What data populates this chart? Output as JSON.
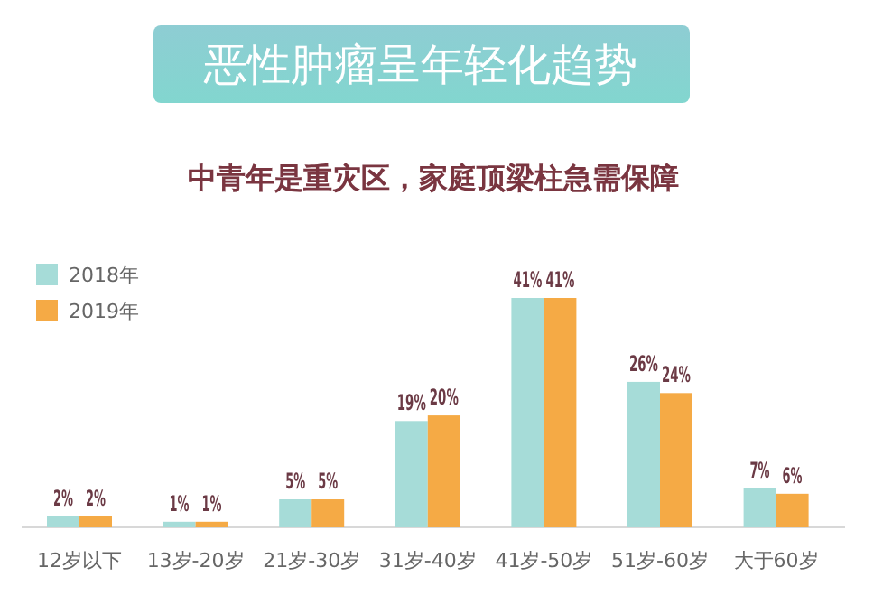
{
  "chart_data": {
    "type": "bar",
    "title": "恶性肿瘤呈年轻化趋势",
    "subtitle": "中青年是重灾区，家庭顶梁柱急需保障",
    "categories": [
      "12岁以下",
      "13岁-20岁",
      "21岁-30岁",
      "31岁-40岁",
      "41岁-50岁",
      "51岁-60岁",
      "大于60岁"
    ],
    "series": [
      {
        "name": "2018年",
        "color": "#a6dcd8",
        "values": [
          2,
          1,
          5,
          19,
          41,
          26,
          7
        ],
        "value_labels": [
          "2%",
          "1%",
          "5%",
          "19%",
          "41%",
          "26%",
          "7%"
        ]
      },
      {
        "name": "2019年",
        "color": "#f5aa45",
        "values": [
          2,
          1,
          5,
          20,
          41,
          24,
          6
        ],
        "value_labels": [
          "2%",
          "1%",
          "5%",
          "20%",
          "41%",
          "24%",
          "6%"
        ]
      }
    ],
    "legend": "top left"
  }
}
